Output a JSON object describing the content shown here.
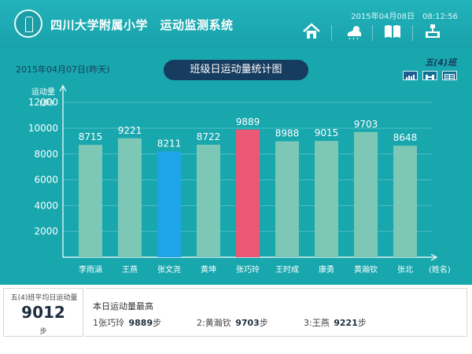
{
  "header": {
    "title": "四川大学附属小学　运动监测系统",
    "datetime": "2015年04月08日　08:12:56",
    "nav": [
      {
        "name": "home",
        "icon": "home-icon"
      },
      {
        "name": "weather",
        "icon": "weather-icon"
      },
      {
        "name": "book",
        "icon": "book-icon"
      },
      {
        "name": "device",
        "icon": "device-icon"
      }
    ]
  },
  "toolbar": {
    "date_text": "2015年04月07日(昨天)",
    "chart_title": "班级日运动量统计图",
    "class_name": "五(4)班",
    "view_buttons": [
      {
        "name": "bar-chart-view",
        "icon": "bar-chart-icon",
        "active": true
      },
      {
        "name": "dumbbell-view",
        "icon": "dumbbell-icon",
        "active": false
      },
      {
        "name": "table-view",
        "icon": "table-icon",
        "active": false
      }
    ]
  },
  "chart_data": {
    "type": "bar",
    "title": "班级日运动量统计图",
    "xlabel": "(姓名)",
    "ylabel": "运动量\n(步)",
    "ylim": [
      0,
      12500
    ],
    "yticks": [
      2000,
      4000,
      6000,
      8000,
      10000,
      12000
    ],
    "grid": true,
    "categories": [
      "李雨涵",
      "王燕",
      "张文尧",
      "黄坤",
      "张巧玲",
      "王时成",
      "康勇",
      "黄瀚钦",
      "张北"
    ],
    "values": [
      8715,
      9221,
      8211,
      8722,
      9889,
      8988,
      9015,
      9703,
      8648
    ],
    "colors": [
      "#7dc7b7",
      "#7dc7b7",
      "#1ea4e8",
      "#7dc7b7",
      "#ea5875",
      "#7dc7b7",
      "#7dc7b7",
      "#7dc7b7",
      "#7dc7b7"
    ]
  },
  "summary": {
    "avg_label": "五(4)班平均日运动量",
    "avg_value": "9012",
    "avg_unit": "步",
    "top_title": "本日运动量最高",
    "top": [
      {
        "rank": "1",
        "name": "张巧玲",
        "value": "9889",
        "unit": "步"
      },
      {
        "rank": "2:",
        "name": "黄瀚钦",
        "value": "9703",
        "unit": "步"
      },
      {
        "rank": "3:",
        "name": "王燕",
        "value": "9221",
        "unit": "步"
      }
    ]
  }
}
